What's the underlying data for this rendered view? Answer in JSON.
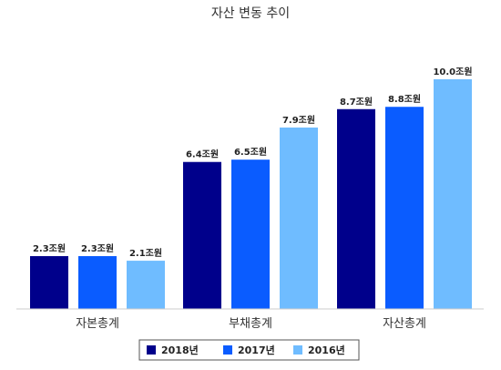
{
  "chart_data": {
    "type": "bar",
    "title": "자산 변동 추이",
    "categories": [
      "자본총계",
      "부채총계",
      "자산총계"
    ],
    "series": [
      {
        "name": "2018년",
        "color": "#00008b",
        "values": [
          2.3,
          6.4,
          8.7
        ],
        "labels": [
          "2.3조원",
          "6.4조원",
          "8.7조원"
        ]
      },
      {
        "name": "2017년",
        "color": "#0a5cff",
        "values": [
          2.3,
          6.5,
          8.8
        ],
        "labels": [
          "2.3조원",
          "6.5조원",
          "8.8조원"
        ]
      },
      {
        "name": "2016년",
        "color": "#6fbcff",
        "values": [
          2.1,
          7.9,
          10.0
        ],
        "labels": [
          "2.1조원",
          "7.9조원",
          "10.0조원"
        ]
      }
    ],
    "ylim": [
      0,
      10
    ],
    "xlabel": "",
    "ylabel": "",
    "grid": false,
    "legend": "bottom"
  }
}
